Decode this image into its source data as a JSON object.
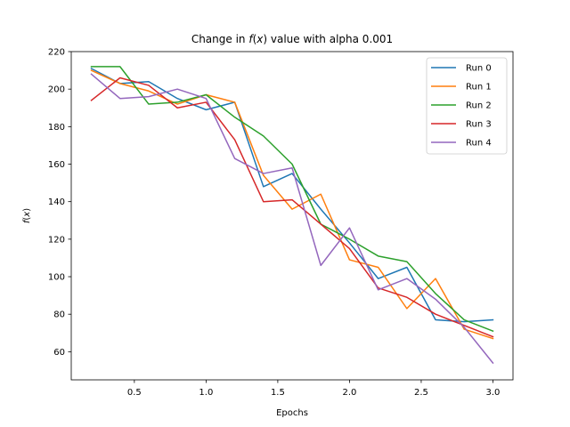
{
  "chart_data": {
    "type": "line",
    "title_prefix": "Change in ",
    "title_func": "f",
    "title_paren_open": "(",
    "title_var": "x",
    "title_paren_close": ")",
    "title_suffix": " value with alpha 0.001",
    "xlabel": "Epochs",
    "ylabel_func": "f",
    "ylabel_paren_open": "(",
    "ylabel_var": "x",
    "ylabel_paren_close": ")",
    "xlim": [
      0.06,
      3.14
    ],
    "ylim": [
      45,
      220
    ],
    "xticks": [
      0.5,
      1.0,
      1.5,
      2.0,
      2.5,
      3.0
    ],
    "xtick_labels": [
      "0.5",
      "1.0",
      "1.5",
      "2.0",
      "2.5",
      "3.0"
    ],
    "yticks": [
      60,
      80,
      100,
      120,
      140,
      160,
      180,
      200,
      220
    ],
    "ytick_labels": [
      "60",
      "80",
      "100",
      "120",
      "140",
      "160",
      "180",
      "200",
      "220"
    ],
    "grid": false,
    "legend_position": "top-right",
    "x": [
      0.2,
      0.4,
      0.6,
      0.8,
      1.0,
      1.2,
      1.4,
      1.6,
      1.8,
      2.0,
      2.2,
      2.4,
      2.6,
      2.8,
      3.0
    ],
    "series": [
      {
        "name": "Run 0",
        "color": "#1f77b4",
        "values": [
          211,
          203,
          204,
          195,
          189,
          193,
          148,
          155,
          136,
          118,
          99,
          105,
          77,
          76,
          77
        ]
      },
      {
        "name": "Run 1",
        "color": "#ff7f0e",
        "values": [
          210,
          203,
          199,
          192,
          197,
          193,
          154,
          136,
          144,
          109,
          105,
          83,
          99,
          72,
          67
        ]
      },
      {
        "name": "Run 2",
        "color": "#2ca02c",
        "values": [
          212,
          212,
          192,
          193,
          197,
          185,
          175,
          160,
          128,
          120,
          111,
          108,
          91,
          77,
          71
        ]
      },
      {
        "name": "Run 3",
        "color": "#d62728",
        "values": [
          194,
          206,
          202,
          190,
          193,
          173,
          140,
          141,
          128,
          115,
          94,
          89,
          80,
          74,
          68
        ]
      },
      {
        "name": "Run 4",
        "color": "#9467bd",
        "values": [
          208,
          195,
          196,
          200,
          195,
          163,
          155,
          158,
          106,
          126,
          93,
          99,
          88,
          73,
          54
        ]
      }
    ]
  }
}
